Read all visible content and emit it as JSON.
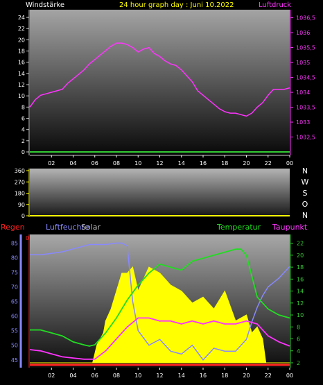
{
  "header": {
    "left_label": "Windstärke",
    "title": "24 hour graph day : Juni 10.2022",
    "right_label": "Luftdruck"
  },
  "colors": {
    "wind": "#ffffff",
    "pressure": "#ff33ff",
    "direction": "#e8e8e8",
    "humidity": "#8888ff",
    "solar": "#ffff00",
    "temperature": "#22dd22",
    "dewpoint": "#ff33ff",
    "rain": "#ff2222",
    "axis_green": "#33cc33",
    "axis_gray": "#cccccc"
  },
  "chart_data": [
    {
      "type": "line",
      "id": "pressure_wind",
      "series": [
        {
          "name": "Windstärke",
          "axis": "left",
          "x": [
            0,
            24
          ],
          "values": [
            0,
            0
          ]
        },
        {
          "name": "Luftdruck",
          "axis": "right",
          "x": [
            0,
            0.5,
            1,
            1.5,
            2,
            2.5,
            3,
            3.5,
            4,
            4.5,
            5,
            5.5,
            6,
            6.5,
            7,
            7.5,
            8,
            8.5,
            9,
            9.5,
            10,
            10.5,
            11,
            11.5,
            12,
            12.5,
            13,
            13.5,
            14,
            14.5,
            15,
            15.5,
            16,
            16.5,
            17,
            17.5,
            18,
            18.5,
            19,
            19.5,
            20,
            20.5,
            21,
            21.5,
            22,
            22.5,
            23,
            23.5,
            24
          ],
          "values": [
            1033.5,
            1033.75,
            1033.9,
            1033.95,
            1034,
            1034.05,
            1034.1,
            1034.3,
            1034.45,
            1034.6,
            1034.75,
            1034.95,
            1035.1,
            1035.25,
            1035.4,
            1035.55,
            1035.65,
            1035.65,
            1035.6,
            1035.5,
            1035.35,
            1035.45,
            1035.5,
            1035.3,
            1035.2,
            1035.05,
            1034.95,
            1034.9,
            1034.75,
            1034.55,
            1034.35,
            1034.05,
            1033.9,
            1033.75,
            1033.6,
            1033.45,
            1033.35,
            1033.3,
            1033.3,
            1033.25,
            1033.2,
            1033.3,
            1033.5,
            1033.65,
            1033.9,
            1034.1,
            1034.1,
            1034.1,
            1034.15
          ]
        }
      ],
      "y_left": {
        "ticks": [
          0,
          2,
          4,
          6,
          8,
          10,
          12,
          14,
          16,
          18,
          20,
          22,
          24
        ],
        "range": [
          0,
          25
        ]
      },
      "y_right": {
        "ticks": [
          "1032,5",
          "1033",
          "1033,5",
          "1034",
          "1034,5",
          "1035",
          "1035,5",
          "1036",
          "1036,5"
        ],
        "range": [
          1032,
          1036.7
        ]
      },
      "x_ticks": [
        "02",
        "04",
        "06",
        "08",
        "10",
        "12",
        "14",
        "16",
        "18",
        "20",
        "22",
        "00"
      ]
    },
    {
      "type": "line",
      "id": "wind_direction",
      "y_ticks": [
        "0",
        "90",
        "180",
        "270",
        "360"
      ],
      "range": [
        0,
        360
      ],
      "compass": [
        "N",
        "W",
        "S",
        "O",
        "N"
      ],
      "series": [
        {
          "name": "Windrichtung",
          "x": [
            0,
            24
          ],
          "values": [
            0,
            0
          ]
        }
      ]
    },
    {
      "type": "line",
      "id": "climate",
      "labels": {
        "rain": "Regen",
        "humidity": "Luftfeuchte",
        "solar": "Solar",
        "temperature": "Temperatur",
        "dewpoint": "Taupunkt"
      },
      "y_left": {
        "ticks": [
          "45",
          "50",
          "55",
          "60",
          "65",
          "70",
          "75",
          "80",
          "85"
        ],
        "range": [
          44,
          87
        ]
      },
      "y_right": {
        "ticks": [
          "2",
          "4",
          "6",
          "8",
          "10",
          "12",
          "14",
          "16",
          "18",
          "20",
          "22"
        ],
        "range": [
          2,
          23
        ]
      },
      "rain_axis_label": "0",
      "series": [
        {
          "name": "Luftfeuchte",
          "axis": "left",
          "x": [
            0,
            1,
            2,
            3,
            4,
            5,
            5.5,
            6,
            7,
            8,
            8.5,
            9,
            9.5,
            10,
            11,
            12,
            13,
            14,
            15,
            16,
            17,
            18,
            19,
            20,
            20.5,
            21,
            21.5,
            22,
            23,
            24
          ],
          "values": [
            81,
            81,
            81.5,
            82,
            83,
            84,
            84.5,
            84.5,
            84.5,
            85,
            85,
            84,
            65,
            55,
            50,
            52,
            48,
            47,
            50,
            45,
            49,
            48,
            48,
            52,
            58,
            63,
            67,
            70,
            73,
            77
          ]
        },
        {
          "name": "Temperatur",
          "axis": "right",
          "x": [
            0,
            1,
            2,
            3,
            4,
            5,
            5.5,
            6,
            7,
            8,
            8.5,
            9,
            10,
            11,
            12,
            13,
            14,
            15,
            16,
            17,
            18,
            19,
            19.5,
            20,
            20.5,
            21,
            22,
            23,
            24
          ],
          "values": [
            7.5,
            7.5,
            7,
            6.5,
            5.5,
            5,
            4.8,
            5,
            7,
            9.5,
            11,
            12.5,
            15,
            17,
            18.5,
            18,
            17.5,
            19,
            19.5,
            20,
            20.5,
            21,
            21,
            20,
            16.5,
            13,
            11,
            10,
            9.5
          ]
        },
        {
          "name": "Taupunkt",
          "axis": "right",
          "x": [
            0,
            1,
            2,
            3,
            4,
            5,
            6,
            7,
            8,
            9,
            10,
            11,
            12,
            13,
            14,
            15,
            16,
            17,
            18,
            19,
            20,
            21,
            22,
            23,
            24
          ],
          "values": [
            4.2,
            4,
            3.5,
            3,
            2.8,
            2.6,
            2.6,
            4,
            6,
            8,
            9.5,
            9.5,
            9,
            9,
            8.5,
            9,
            8.5,
            9,
            8.5,
            8.5,
            9,
            8.5,
            6.5,
            5.5,
            4.8
          ]
        },
        {
          "name": "Solar",
          "axis": "right",
          "x": [
            0,
            5,
            5.8,
            6.2,
            6.8,
            7,
            7.5,
            8,
            8.5,
            9,
            9.5,
            10,
            11,
            12,
            13,
            14,
            15,
            16,
            17,
            18,
            19,
            20,
            20.5,
            21,
            21.5,
            21.8,
            24
          ],
          "values": [
            2,
            2,
            2,
            5,
            7,
            9,
            11,
            14,
            17,
            17,
            18,
            14,
            18,
            17,
            15,
            14,
            12,
            13,
            11,
            14,
            9,
            10,
            7,
            8,
            6,
            2,
            2
          ]
        },
        {
          "name": "Regen",
          "axis": "rain",
          "x": [
            0,
            24
          ],
          "values": [
            0,
            0
          ]
        }
      ],
      "x_ticks": [
        "02",
        "04",
        "06",
        "08",
        "10",
        "12",
        "14",
        "16",
        "18",
        "20",
        "22",
        "00"
      ]
    }
  ]
}
